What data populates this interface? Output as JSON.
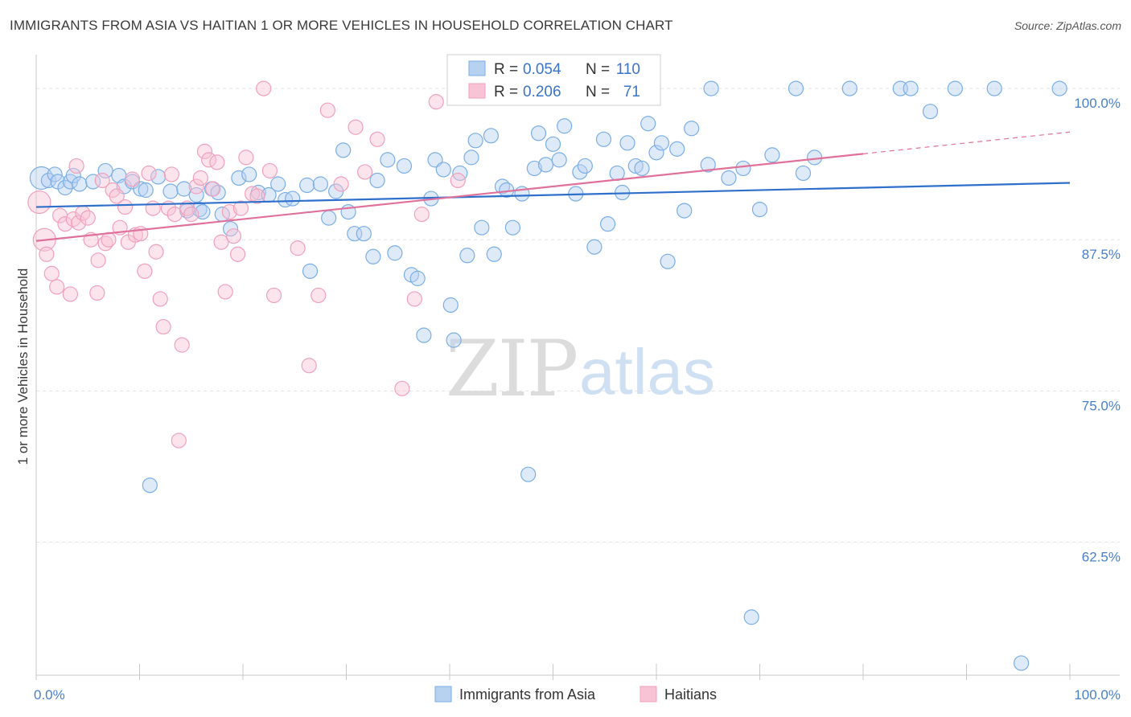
{
  "chart_data": {
    "type": "scatter",
    "title": "IMMIGRANTS FROM ASIA VS HAITIAN 1 OR MORE VEHICLES IN HOUSEHOLD CORRELATION CHART",
    "source": "Source: ZipAtlas.com",
    "ylabel": "1 or more Vehicles in Household",
    "xlabel": "",
    "xlim": [
      0,
      100
    ],
    "ylim": [
      51.5,
      102
    ],
    "x_tick_labels": [
      "0.0%",
      "100.0%"
    ],
    "y_ticks": [
      62.5,
      75.0,
      87.5,
      100.0
    ],
    "y_tick_labels": [
      "62.5%",
      "75.0%",
      "87.5%",
      "100.0%"
    ],
    "watermark": {
      "zip": "ZIP",
      "atlas": "atlas"
    },
    "legend": {
      "r_label": "R =",
      "n_label": "N =",
      "entries": [
        {
          "r": "0.054",
          "n": "110"
        },
        {
          "r": "0.206",
          "n": "71"
        }
      ]
    },
    "series": [
      {
        "name": "Immigrants from Asia",
        "color": "#7aaee6",
        "fill": "#b7d1f1",
        "line_color": "#2e6fcc",
        "trend": {
          "x0": 0,
          "y0": 90.2,
          "x1": 100,
          "y1": 92.2
        },
        "points": [
          [
            0.5,
            92.6
          ],
          [
            1.2,
            92.4
          ],
          [
            1.8,
            92.9
          ],
          [
            2.1,
            92.3
          ],
          [
            2.8,
            91.8
          ],
          [
            3.3,
            92.3
          ],
          [
            3.6,
            92.8
          ],
          [
            4.2,
            92.1
          ],
          [
            5.5,
            92.3
          ],
          [
            6.7,
            93.2
          ],
          [
            8.0,
            92.8
          ],
          [
            8.5,
            91.9
          ],
          [
            9.3,
            92.3
          ],
          [
            10.1,
            91.7
          ],
          [
            10.6,
            91.6
          ],
          [
            11.8,
            92.7
          ],
          [
            13.0,
            91.5
          ],
          [
            14.3,
            91.7
          ],
          [
            14.6,
            89.9
          ],
          [
            15.5,
            91.2
          ],
          [
            15.8,
            90.0
          ],
          [
            16.1,
            89.8
          ],
          [
            17.0,
            91.7
          ],
          [
            17.6,
            91.4
          ],
          [
            18.0,
            89.6
          ],
          [
            18.8,
            88.4
          ],
          [
            19.6,
            92.6
          ],
          [
            20.6,
            92.9
          ],
          [
            21.5,
            91.4
          ],
          [
            22.5,
            91.2
          ],
          [
            23.4,
            92.1
          ],
          [
            24.1,
            90.8
          ],
          [
            24.8,
            90.9
          ],
          [
            26.2,
            92.0
          ],
          [
            26.5,
            84.9
          ],
          [
            27.5,
            92.1
          ],
          [
            28.3,
            89.3
          ],
          [
            29.0,
            91.5
          ],
          [
            29.7,
            94.9
          ],
          [
            30.2,
            89.8
          ],
          [
            30.8,
            88.0
          ],
          [
            31.7,
            88.0
          ],
          [
            32.6,
            86.1
          ],
          [
            33.0,
            92.4
          ],
          [
            34.0,
            94.1
          ],
          [
            34.7,
            86.4
          ],
          [
            35.6,
            93.6
          ],
          [
            36.3,
            84.6
          ],
          [
            36.9,
            84.3
          ],
          [
            37.5,
            79.6
          ],
          [
            38.2,
            90.9
          ],
          [
            38.6,
            94.1
          ],
          [
            39.4,
            93.3
          ],
          [
            40.1,
            82.1
          ],
          [
            40.4,
            79.2
          ],
          [
            41.0,
            93.0
          ],
          [
            41.7,
            86.2
          ],
          [
            42.1,
            94.3
          ],
          [
            42.5,
            95.7
          ],
          [
            43.1,
            88.5
          ],
          [
            44.0,
            96.1
          ],
          [
            44.3,
            86.3
          ],
          [
            45.1,
            91.9
          ],
          [
            45.5,
            91.6
          ],
          [
            46.1,
            88.5
          ],
          [
            47.0,
            91.3
          ],
          [
            47.6,
            68.1
          ],
          [
            48.2,
            93.4
          ],
          [
            48.6,
            96.3
          ],
          [
            49.3,
            93.7
          ],
          [
            50.0,
            95.4
          ],
          [
            50.6,
            94.1
          ],
          [
            51.1,
            96.9
          ],
          [
            52.2,
            91.3
          ],
          [
            52.6,
            93.1
          ],
          [
            53.1,
            93.6
          ],
          [
            54.0,
            86.9
          ],
          [
            54.9,
            95.8
          ],
          [
            55.3,
            88.8
          ],
          [
            56.2,
            93.0
          ],
          [
            56.7,
            91.4
          ],
          [
            57.2,
            95.5
          ],
          [
            58.0,
            93.6
          ],
          [
            58.6,
            93.4
          ],
          [
            59.2,
            97.1
          ],
          [
            60.0,
            94.7
          ],
          [
            60.5,
            95.5
          ],
          [
            61.1,
            85.7
          ],
          [
            62.0,
            95.0
          ],
          [
            62.7,
            89.9
          ],
          [
            63.4,
            96.7
          ],
          [
            65.0,
            93.7
          ],
          [
            65.3,
            100.0
          ],
          [
            67.0,
            92.6
          ],
          [
            68.4,
            93.4
          ],
          [
            69.2,
            56.3
          ],
          [
            70.0,
            90.0
          ],
          [
            71.2,
            94.5
          ],
          [
            73.5,
            100.0
          ],
          [
            74.2,
            93.0
          ],
          [
            75.3,
            94.3
          ],
          [
            78.7,
            100.0
          ],
          [
            83.6,
            100.0
          ],
          [
            84.6,
            100.0
          ],
          [
            86.5,
            98.1
          ],
          [
            88.9,
            100.0
          ],
          [
            92.7,
            100.0
          ],
          [
            95.3,
            52.5
          ],
          [
            99.0,
            100.0
          ],
          [
            11.0,
            67.2
          ]
        ]
      },
      {
        "name": "Haitians",
        "color": "#f0a0bb",
        "fill": "#f8c4d5",
        "line_color": "#e0719a",
        "trend": {
          "x0": 0,
          "y0": 87.4,
          "x1": 80,
          "y1": 94.6,
          "dash_to_x": 100,
          "dash_to_y": 96.4
        },
        "points": [
          [
            0.3,
            90.6
          ],
          [
            0.8,
            87.5
          ],
          [
            1.0,
            86.3
          ],
          [
            1.5,
            84.7
          ],
          [
            2.0,
            83.6
          ],
          [
            2.3,
            89.5
          ],
          [
            2.8,
            88.8
          ],
          [
            3.3,
            83.0
          ],
          [
            3.6,
            89.2
          ],
          [
            3.9,
            93.6
          ],
          [
            4.1,
            88.9
          ],
          [
            4.5,
            89.7
          ],
          [
            5.0,
            89.3
          ],
          [
            5.3,
            87.5
          ],
          [
            5.9,
            83.1
          ],
          [
            6.0,
            85.8
          ],
          [
            6.4,
            92.4
          ],
          [
            6.7,
            87.2
          ],
          [
            7.0,
            87.5
          ],
          [
            7.4,
            91.6
          ],
          [
            7.8,
            91.1
          ],
          [
            8.1,
            88.5
          ],
          [
            8.6,
            90.2
          ],
          [
            8.9,
            87.3
          ],
          [
            9.3,
            92.5
          ],
          [
            9.6,
            87.9
          ],
          [
            10.1,
            88.0
          ],
          [
            10.5,
            84.9
          ],
          [
            10.9,
            93.0
          ],
          [
            11.3,
            90.1
          ],
          [
            11.6,
            86.5
          ],
          [
            12.0,
            82.6
          ],
          [
            12.3,
            80.3
          ],
          [
            12.8,
            90.1
          ],
          [
            13.1,
            92.9
          ],
          [
            13.4,
            89.6
          ],
          [
            13.8,
            70.9
          ],
          [
            14.1,
            78.8
          ],
          [
            14.6,
            90.1
          ],
          [
            15.0,
            89.6
          ],
          [
            15.5,
            91.9
          ],
          [
            15.9,
            92.6
          ],
          [
            16.3,
            94.8
          ],
          [
            16.7,
            94.1
          ],
          [
            17.1,
            91.7
          ],
          [
            17.5,
            93.9
          ],
          [
            17.9,
            87.3
          ],
          [
            18.3,
            83.2
          ],
          [
            18.7,
            89.8
          ],
          [
            19.1,
            87.8
          ],
          [
            19.5,
            86.3
          ],
          [
            19.8,
            90.1
          ],
          [
            20.3,
            94.3
          ],
          [
            20.9,
            91.3
          ],
          [
            21.4,
            91.1
          ],
          [
            22.0,
            100.0
          ],
          [
            22.6,
            93.2
          ],
          [
            23.0,
            82.9
          ],
          [
            25.3,
            86.8
          ],
          [
            26.4,
            77.1
          ],
          [
            27.3,
            82.9
          ],
          [
            28.2,
            98.2
          ],
          [
            29.5,
            92.1
          ],
          [
            30.9,
            96.8
          ],
          [
            31.8,
            93.1
          ],
          [
            33.0,
            95.8
          ],
          [
            35.4,
            75.2
          ],
          [
            36.6,
            82.6
          ],
          [
            37.3,
            89.6
          ],
          [
            38.7,
            98.9
          ],
          [
            40.8,
            92.4
          ]
        ]
      }
    ]
  }
}
